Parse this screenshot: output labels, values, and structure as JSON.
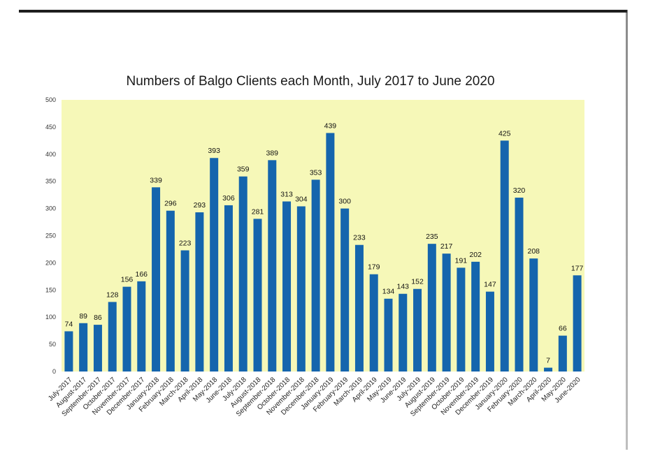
{
  "chart_data": {
    "type": "bar",
    "title": "Numbers of Balgo Clients each Month, July 2017 to June 2020",
    "xlabel": "",
    "ylabel": "",
    "ylim": [
      0,
      500
    ],
    "yticks": [
      0,
      50,
      100,
      150,
      200,
      250,
      300,
      350,
      400,
      450,
      500
    ],
    "grid": false,
    "legend": "none",
    "categories": [
      "July-2017",
      "August-2017",
      "September-2017",
      "October-2017",
      "November-2017",
      "December-2017",
      "January-2018",
      "February-2018",
      "March-2018",
      "April-2018",
      "May-2018",
      "June-2018",
      "July-2018",
      "August-2018",
      "September-2018",
      "October-2018",
      "November-2018",
      "December-2018",
      "January-2019",
      "February-2019",
      "March-2019",
      "April-2019",
      "May-2019",
      "June-2019",
      "July-2019",
      "August-2019",
      "September-2019",
      "October-2019",
      "November-2019",
      "December-2019",
      "January-2020",
      "February-2020",
      "March-2020",
      "April-2020",
      "May-2020",
      "June-2020"
    ],
    "values": [
      74,
      89,
      86,
      128,
      156,
      166,
      339,
      296,
      223,
      293,
      393,
      306,
      359,
      281,
      389,
      313,
      304,
      353,
      439,
      300,
      233,
      179,
      134,
      143,
      152,
      235,
      217,
      191,
      202,
      147,
      425,
      320,
      208,
      7,
      66,
      177
    ],
    "colors": {
      "bar": "#1565ad",
      "plot_background": "#f6f8b8",
      "text": "#1a1a1a"
    }
  }
}
